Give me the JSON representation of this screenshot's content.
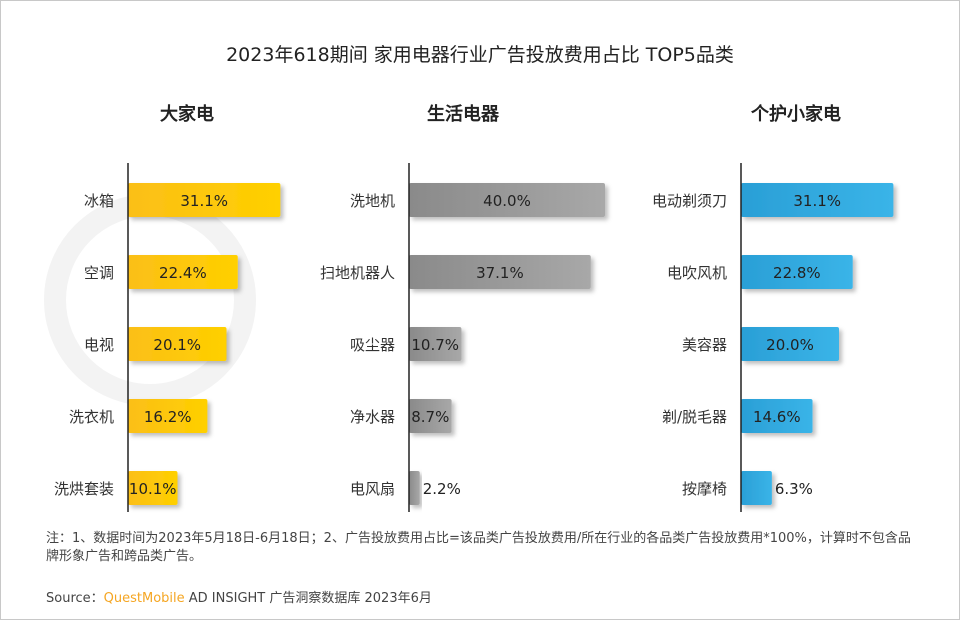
{
  "title": "2023年618期间 家用电器行业广告投放费用占比 TOP5品类",
  "watermark": "QUESTMOBILE",
  "chart_data": [
    {
      "type": "bar",
      "orientation": "horizontal",
      "title": "大家电",
      "color": "#fbbf17",
      "categories": [
        "冰箱",
        "空调",
        "电视",
        "洗衣机",
        "洗烘套装"
      ],
      "values": [
        31.1,
        22.4,
        20.1,
        16.2,
        10.1
      ],
      "labels": [
        "31.1%",
        "22.4%",
        "20.1%",
        "16.2%",
        "10.1%"
      ]
    },
    {
      "type": "bar",
      "orientation": "horizontal",
      "title": "生活电器",
      "color": "#8a8a8a",
      "categories": [
        "洗地机",
        "扫地机器人",
        "吸尘器",
        "净水器",
        "电风扇"
      ],
      "values": [
        40.0,
        37.1,
        10.7,
        8.7,
        2.2
      ],
      "labels": [
        "40.0%",
        "37.1%",
        "10.7%",
        "8.7%",
        "2.2%"
      ]
    },
    {
      "type": "bar",
      "orientation": "horizontal",
      "title": "个护小家电",
      "color": "#2a9fd6",
      "categories": [
        "电动剃须刀",
        "电吹风机",
        "美容器",
        "剃/脱毛器",
        "按摩椅"
      ],
      "values": [
        31.1,
        22.8,
        20.0,
        14.6,
        6.3
      ],
      "labels": [
        "31.1%",
        "22.8%",
        "20.0%",
        "14.6%",
        "6.3%"
      ]
    }
  ],
  "note": "注：1、数据时间为2023年5月18日-6月18日；2、广告投放费用占比=该品类广告投放费用/所在行业的各品类广告投放费用*100%，计算时不包含品牌形象广告和跨品类广告。",
  "source": {
    "prefix": "Source：",
    "brand": "QuestMobile",
    "rest": " AD INSIGHT 广告洞察数据库 2023年6月"
  }
}
